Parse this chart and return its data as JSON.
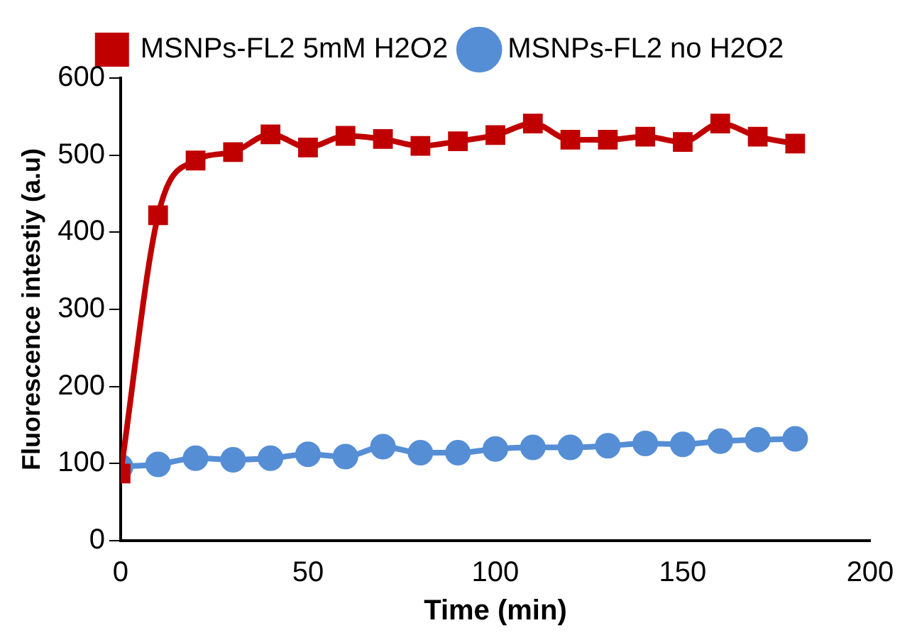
{
  "chart_data": {
    "type": "line",
    "xlabel": "Time (min)",
    "ylabel": "Fluorescence intestiy (a.u)",
    "x": [
      0,
      10,
      20,
      30,
      40,
      50,
      60,
      70,
      80,
      90,
      100,
      110,
      120,
      130,
      140,
      150,
      160,
      170,
      180
    ],
    "series": [
      {
        "name": "MSNPs-FL2 5mM H2O2",
        "color": "#c00000",
        "marker": "square",
        "values": [
          87,
          422,
          493,
          504,
          527,
          510,
          525,
          521,
          512,
          518,
          526,
          541,
          520,
          520,
          524,
          517,
          541,
          524,
          515
        ]
      },
      {
        "name": "MSNPs-FL2 no H2O2",
        "color": "#558ed5",
        "marker": "circle",
        "values": [
          96,
          99,
          107,
          105,
          107,
          112,
          109,
          122,
          114,
          114,
          119,
          121,
          121,
          123,
          126,
          125,
          129,
          131,
          132
        ]
      }
    ],
    "xlim": [
      0,
      200
    ],
    "xticks": [
      0,
      50,
      100,
      150,
      200
    ],
    "ylim": [
      0,
      600
    ],
    "yticks": [
      0,
      100,
      200,
      300,
      400,
      500,
      600
    ],
    "grid": false,
    "legend": "top",
    "line_style": "solid"
  }
}
